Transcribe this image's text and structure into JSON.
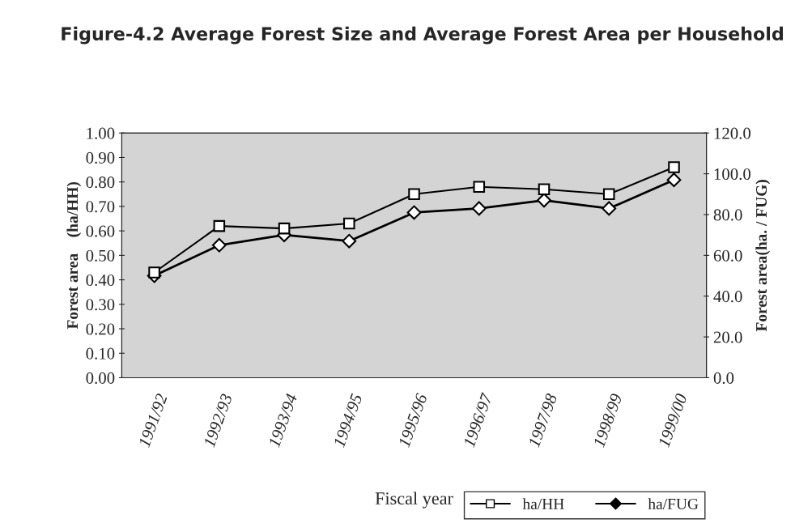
{
  "chart_data": {
    "type": "line",
    "title": "Figure-4.2 Average Forest Size and Average Forest Area per Household",
    "categories": [
      "1991/92",
      "1992/93",
      "1993/94",
      "1994/95",
      "1995/96",
      "1996/97",
      "1997/98",
      "1998/99",
      "1999/00"
    ],
    "series": [
      {
        "name": "ha/HH",
        "color": "#000000",
        "marker": "square",
        "values": [
          0.43,
          0.62,
          0.61,
          0.63,
          0.75,
          0.78,
          0.77,
          0.75,
          0.86
        ]
      },
      {
        "name": "ha/FUG",
        "color": "#000000",
        "marker": "diamond",
        "axis": "y2",
        "values": [
          50,
          65,
          70,
          67,
          81,
          83,
          87,
          83,
          97
        ]
      }
    ],
    "xlabel": "Fiscal year",
    "ylabel": "Forest area    (ha/HH)",
    "y2label": "Forest area(ha. / FUG)",
    "ylim": [
      0,
      1
    ],
    "yticks": [
      {
        "value": 0,
        "label": "0.00"
      },
      {
        "value": 0.1,
        "label": "0.10"
      },
      {
        "value": 0.2,
        "label": "0.20"
      },
      {
        "value": 0.3,
        "label": "0.30"
      },
      {
        "value": 0.4,
        "label": "0.40"
      },
      {
        "value": 0.5,
        "label": "0.50"
      },
      {
        "value": 0.6,
        "label": "0.60"
      },
      {
        "value": 0.7,
        "label": "0.70"
      },
      {
        "value": 0.8,
        "label": "0.80"
      },
      {
        "value": 0.9,
        "label": "0.90"
      },
      {
        "value": 1,
        "label": "1.00"
      }
    ],
    "y2lim": [
      0,
      120
    ],
    "y2ticks": [
      {
        "value": 0,
        "label": "0.0"
      },
      {
        "value": 20,
        "label": "20.0"
      },
      {
        "value": 40,
        "label": "40.0"
      },
      {
        "value": 60,
        "label": "60.0"
      },
      {
        "value": 80,
        "label": "80.0"
      },
      {
        "value": 100,
        "label": "100.0"
      },
      {
        "value": 120,
        "label": "120.0"
      }
    ],
    "legend": "bottom right",
    "grid": false
  }
}
